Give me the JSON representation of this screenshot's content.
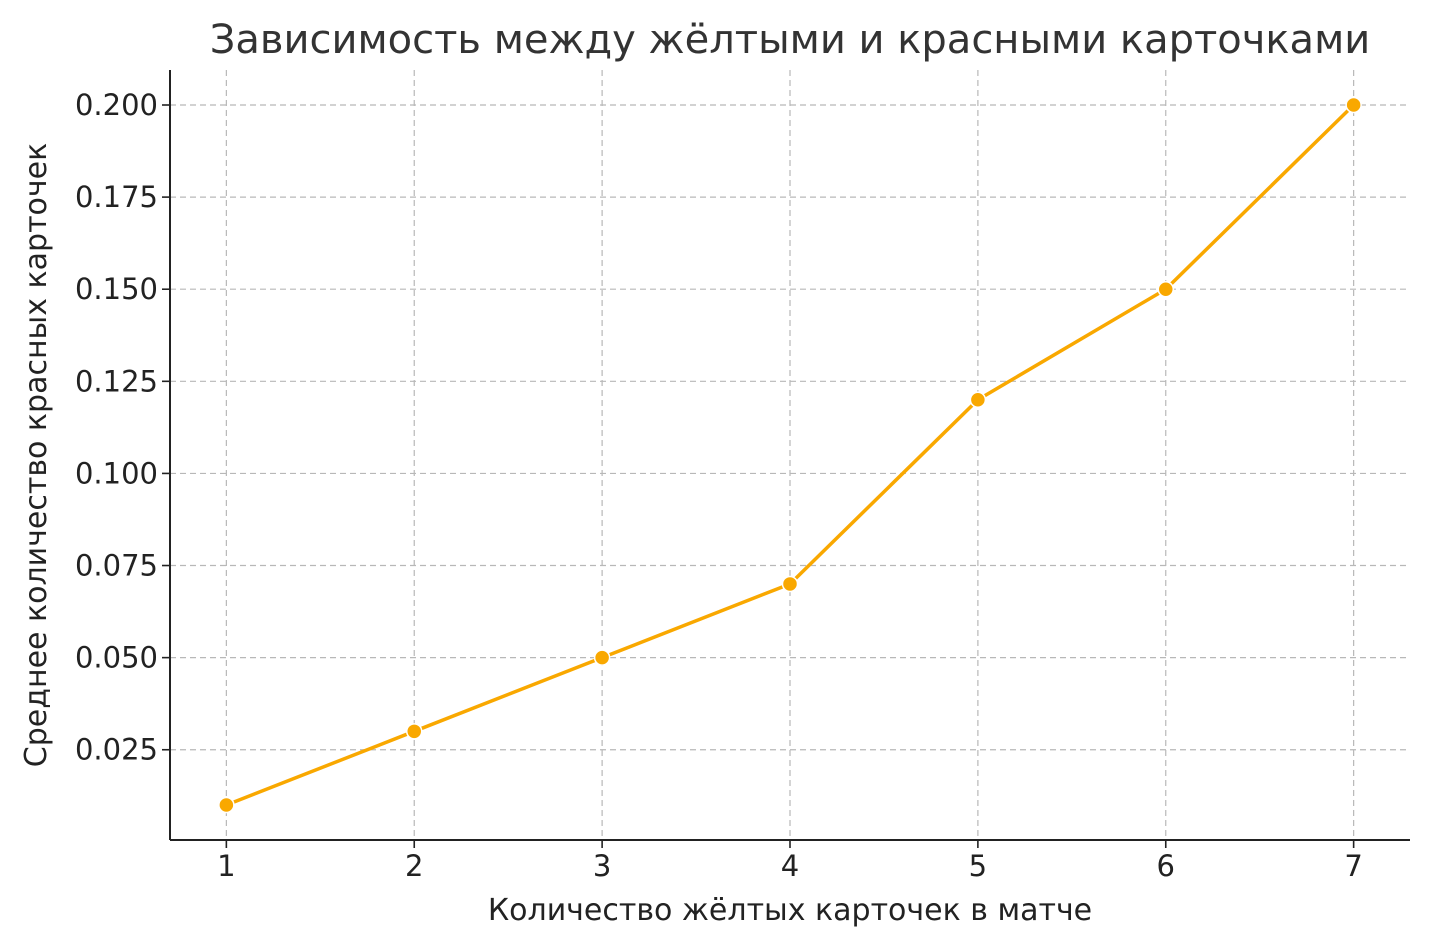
{
  "chart_data": {
    "type": "line",
    "title": "Зависимость между жёлтыми и красными карточками",
    "xlabel": "Количество жёлтых карточек в матче",
    "ylabel": "Среднее количество красных карточек",
    "x": [
      1,
      2,
      3,
      4,
      5,
      6,
      7
    ],
    "series": [
      {
        "values": [
          0.01,
          0.03,
          0.05,
          0.07,
          0.12,
          0.15,
          0.2
        ],
        "color": "#F9A800",
        "marker": "circle"
      }
    ],
    "xticks": [
      "1",
      "2",
      "3",
      "4",
      "5",
      "6",
      "7"
    ],
    "yticks": [
      "0.025",
      "0.050",
      "0.075",
      "0.100",
      "0.125",
      "0.150",
      "0.175",
      "0.200"
    ],
    "xlim": [
      0.7,
      7.3
    ],
    "ylim": [
      0.0005,
      0.2095
    ],
    "grid": true,
    "legend": "none"
  }
}
